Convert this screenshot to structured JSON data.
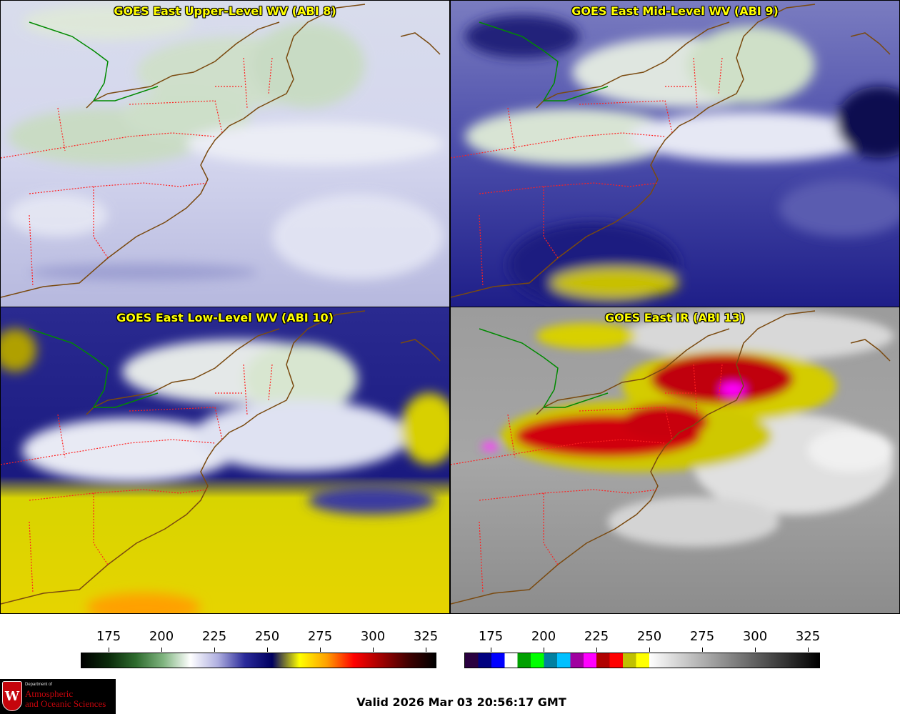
{
  "panels": [
    {
      "title": "GOES East Upper-Level WV (ABI 8)",
      "palette": "wv-upper"
    },
    {
      "title": "GOES East Mid-Level WV (ABI 9)",
      "palette": "wv-mid"
    },
    {
      "title": "GOES East Low-Level WV (ABI 10)",
      "palette": "wv-low"
    },
    {
      "title": "GOES East IR (ABI 13)",
      "palette": "ir"
    }
  ],
  "colorbar_wv": {
    "ticks": [
      "175",
      "200",
      "225",
      "250",
      "275",
      "300",
      "325"
    ],
    "gradient": [
      "#000000",
      "#0a2a0a",
      "#2e6b2e",
      "#7fb47f",
      "#ffffff",
      "#b0b0e0",
      "#2a2a9a",
      "#000060",
      "#ffff00",
      "#ffa000",
      "#ff0000",
      "#a00000",
      "#400000",
      "#000000"
    ]
  },
  "colorbar_ir": {
    "ticks": [
      "175",
      "200",
      "225",
      "250",
      "275",
      "300",
      "325"
    ],
    "segments": [
      "#2a0040",
      "#000080",
      "#0000ff",
      "#ffffff",
      "#00a000",
      "#00ff00",
      "#0080a0",
      "#00c0ff",
      "#a000a0",
      "#ff00ff",
      "#b00000",
      "#ff0000",
      "#c0c000",
      "#ffff00"
    ]
  },
  "logo": {
    "dept": "Department of",
    "line1": "Atmospheric",
    "line2": "and Oceanic Sciences",
    "letter": "W"
  },
  "valid_text": "Valid 2026 Mar 03 20:56:17 GMT",
  "colors": {
    "title": "#ffff00",
    "coast": "#7a4a10",
    "state_border": "#ff2020",
    "canada_border": "#008a00"
  }
}
